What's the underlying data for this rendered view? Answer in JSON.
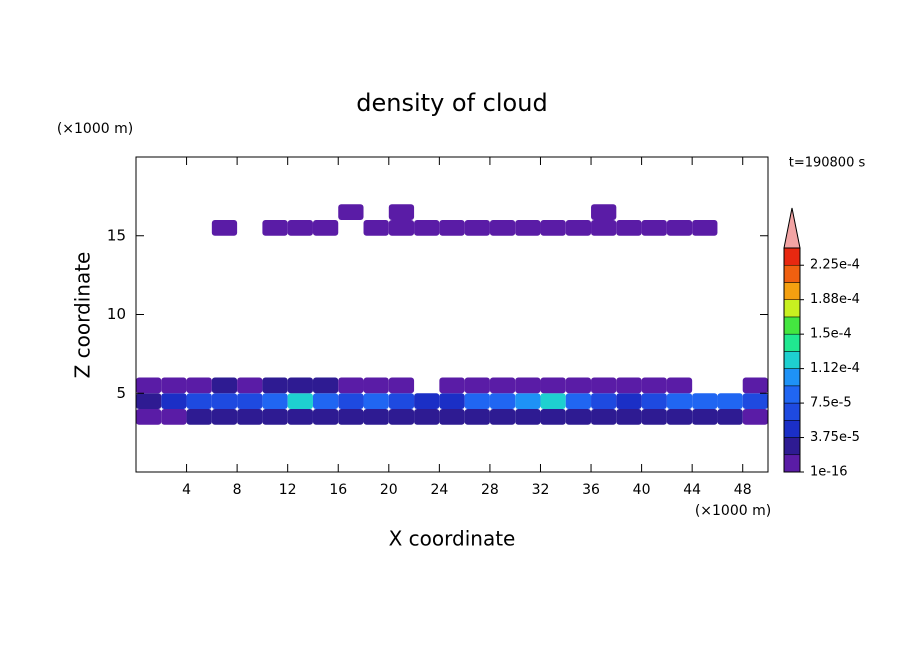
{
  "chart_data": {
    "type": "contour",
    "title": "density of cloud",
    "y_unit": "(×1000 m)",
    "x_unit": "(×1000 m)",
    "time_label": "t=190800 s",
    "xlabel": "X coordinate",
    "ylabel": "Z coordinate",
    "xlim": [
      0,
      50
    ],
    "ylim": [
      0,
      20
    ],
    "xticks": [
      4,
      8,
      12,
      16,
      20,
      24,
      28,
      32,
      36,
      40,
      44,
      48
    ],
    "yticks": [
      5,
      10,
      15
    ],
    "x": [
      1,
      3,
      5,
      7,
      9,
      11,
      13,
      15,
      17,
      19,
      21,
      23,
      25,
      27,
      29,
      31,
      33,
      35,
      37,
      39,
      41,
      43,
      45,
      47,
      49
    ],
    "y": [
      3.5,
      4.5,
      5.5,
      15.5,
      16.5
    ],
    "z": [
      [
        1e-05,
        1e-05,
        2e-05,
        2e-05,
        2e-05,
        2e-05,
        2e-05,
        2e-05,
        2e-05,
        2e-05,
        2e-05,
        2e-05,
        2e-05,
        2e-05,
        2e-05,
        2e-05,
        2e-05,
        2e-05,
        2e-05,
        2e-05,
        2e-05,
        2e-05,
        2e-05,
        2e-05,
        1e-05
      ],
      [
        3e-05,
        4e-05,
        6e-05,
        7e-05,
        6e-05,
        8e-05,
        0.00012,
        8e-05,
        6e-05,
        8e-05,
        7e-05,
        5e-05,
        4e-05,
        8e-05,
        9e-05,
        0.00011,
        0.00012,
        8e-05,
        6e-05,
        5e-05,
        6e-05,
        8e-05,
        9e-05,
        8e-05,
        6e-05
      ],
      [
        1e-05,
        1e-05,
        1e-05,
        2e-05,
        1.5e-05,
        2e-05,
        2e-05,
        2e-05,
        1e-05,
        1e-05,
        1e-05,
        null,
        1e-05,
        1e-05,
        1e-05,
        1e-05,
        1e-05,
        1e-05,
        1e-05,
        1e-05,
        1e-05,
        1e-05,
        null,
        null,
        1e-05
      ],
      [
        null,
        null,
        null,
        1e-05,
        null,
        1e-05,
        1e-05,
        1e-05,
        null,
        1e-05,
        1e-05,
        1e-05,
        1e-05,
        1e-05,
        1e-05,
        1e-05,
        1e-05,
        1e-05,
        1e-05,
        1e-05,
        1e-05,
        1e-05,
        1e-05,
        null,
        null
      ],
      [
        null,
        null,
        null,
        null,
        null,
        null,
        null,
        null,
        1e-05,
        null,
        1e-05,
        null,
        null,
        null,
        null,
        null,
        null,
        null,
        1e-05,
        null,
        null,
        null,
        null,
        null,
        null
      ]
    ],
    "colorbar": {
      "levels": [
        1e-16,
        1.875e-05,
        3.75e-05,
        5.625e-05,
        7.5e-05,
        9.375e-05,
        0.0001125,
        0.00013125,
        0.00015,
        0.00016875,
        0.0001875,
        0.00020625,
        0.000225,
        0.00024375
      ],
      "colors": [
        "#5a1ca6",
        "#2e1b92",
        "#1b2fc6",
        "#1e4ae0",
        "#2066f2",
        "#1e92f6",
        "#1ed0d0",
        "#20e890",
        "#44e640",
        "#c8f020",
        "#f4a010",
        "#f06010",
        "#e82810"
      ],
      "extend_color": "#f2a4a4",
      "ticks": [
        {
          "value": 1e-16,
          "label": "1e-16"
        },
        {
          "value": 3.75e-05,
          "label": "3.75e-5"
        },
        {
          "value": 7.5e-05,
          "label": "7.5e-5"
        },
        {
          "value": 0.0001125,
          "label": "1.12e-4"
        },
        {
          "value": 0.00015,
          "label": "1.5e-4"
        },
        {
          "value": 0.0001875,
          "label": "1.88e-4"
        },
        {
          "value": 0.000225,
          "label": "2.25e-4"
        }
      ]
    }
  }
}
